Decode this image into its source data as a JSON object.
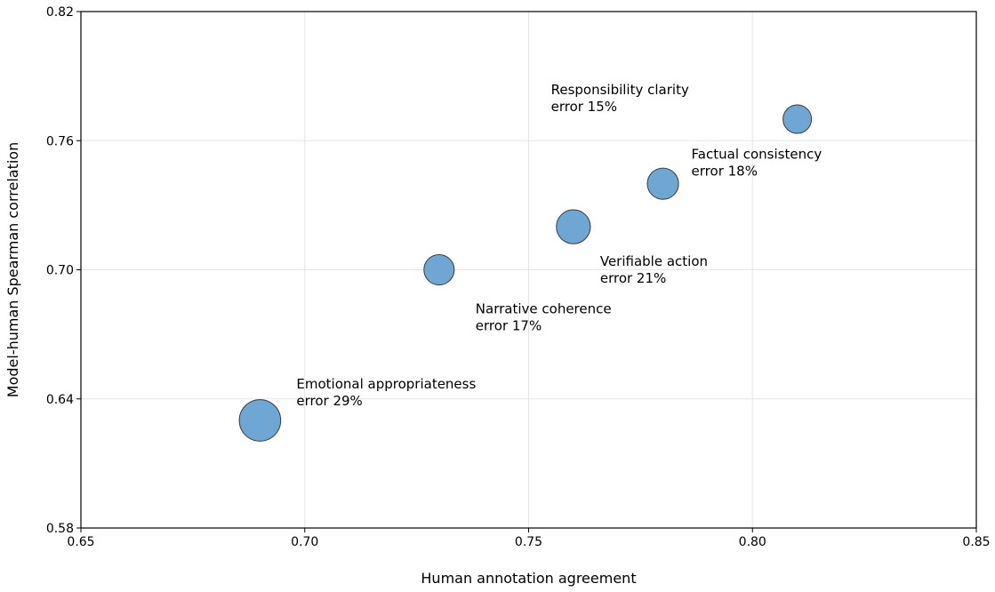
{
  "chart_data": {
    "type": "scatter",
    "title": "",
    "xlabel": "Human annotation agreement",
    "ylabel": "Model-human Spearman correlation",
    "xlim": [
      0.65,
      0.85
    ],
    "ylim": [
      0.58,
      0.82
    ],
    "xticks": [
      0.65,
      0.7,
      0.75,
      0.8,
      0.85
    ],
    "xtick_labels": [
      "0.65",
      "0.70",
      "0.75",
      "0.80",
      "0.85"
    ],
    "yticks": [
      0.58,
      0.64,
      0.7,
      0.76,
      0.82
    ],
    "ytick_labels": [
      "0.58",
      "0.64",
      "0.70",
      "0.76",
      "0.82"
    ],
    "grid": true,
    "legend": "none",
    "marker_color": "#6fa7d4",
    "marker_edge_color": "#3a3a3a",
    "points": [
      {
        "label": "Emotional appropriateness",
        "error_label": "error 29%",
        "error": 29,
        "x": 0.69,
        "y": 0.63
      },
      {
        "label": "Narrative coherence",
        "error_label": "error 17%",
        "error": 17,
        "x": 0.73,
        "y": 0.7
      },
      {
        "label": "Verifiable action",
        "error_label": "error 21%",
        "error": 21,
        "x": 0.76,
        "y": 0.72
      },
      {
        "label": "Factual consistency",
        "error_label": "error 18%",
        "error": 18,
        "x": 0.78,
        "y": 0.74
      },
      {
        "label": "Responsibility clarity",
        "error_label": "error 15%",
        "error": 15,
        "x": 0.81,
        "y": 0.77
      }
    ]
  }
}
